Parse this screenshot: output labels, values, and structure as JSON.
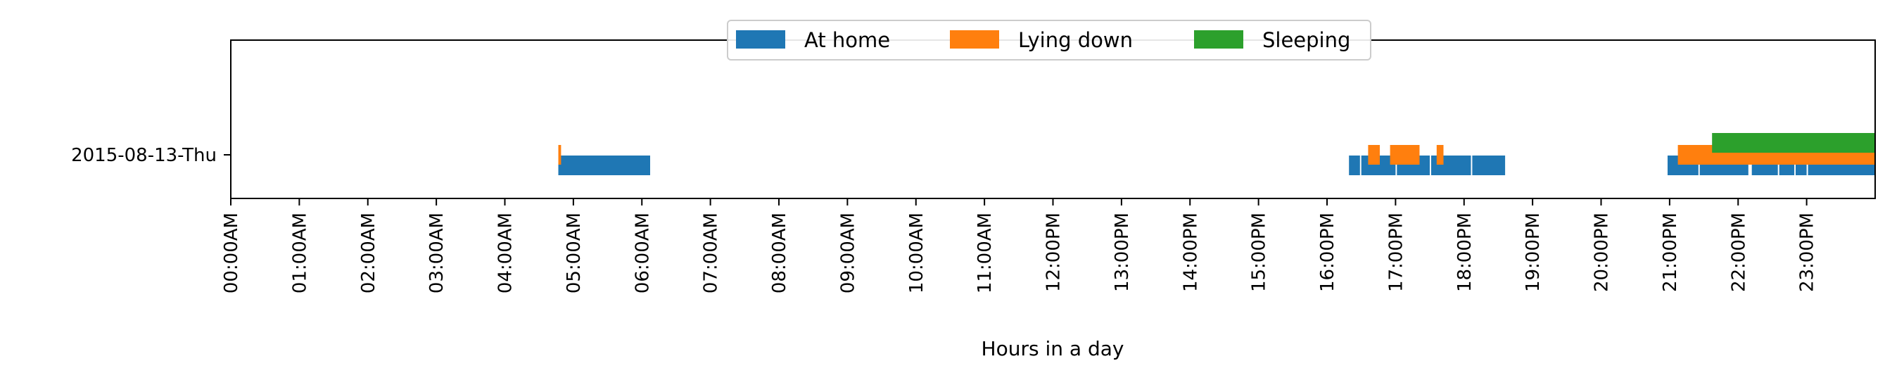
{
  "chart_data": {
    "type": "timeline",
    "xlabel": "Hours in a day",
    "ylabel": "",
    "xlim": [
      0,
      24
    ],
    "x_unit": "hours",
    "grid": false,
    "legend_placement": "upper-center",
    "categories": [
      "2015-08-13-Thu"
    ],
    "x_ticks": [
      "00:00AM",
      "01:00AM",
      "02:00AM",
      "03:00AM",
      "04:00AM",
      "05:00AM",
      "06:00AM",
      "07:00AM",
      "08:00AM",
      "09:00AM",
      "10:00AM",
      "11:00AM",
      "12:00PM",
      "13:00PM",
      "14:00PM",
      "15:00PM",
      "16:00PM",
      "17:00PM",
      "18:00PM",
      "19:00PM",
      "20:00PM",
      "21:00PM",
      "22:00PM",
      "23:00PM"
    ],
    "series": [
      {
        "name": "At home",
        "color": "#1f77b4",
        "intervals": [
          [
            4.78,
            6.12
          ],
          [
            16.32,
            16.48
          ],
          [
            16.5,
            17.0
          ],
          [
            17.02,
            17.5
          ],
          [
            17.52,
            18.1
          ],
          [
            18.12,
            18.6
          ],
          [
            20.97,
            21.42
          ],
          [
            21.44,
            22.15
          ],
          [
            22.2,
            22.58
          ],
          [
            22.6,
            22.82
          ],
          [
            22.84,
            23.0
          ],
          [
            23.02,
            24.0
          ]
        ]
      },
      {
        "name": "Lying down",
        "color": "#ff7f0e",
        "intervals": [
          [
            4.78,
            4.82
          ],
          [
            16.6,
            16.77
          ],
          [
            16.92,
            17.35
          ],
          [
            17.6,
            17.7
          ],
          [
            21.12,
            24.0
          ]
        ]
      },
      {
        "name": "Sleeping",
        "color": "#2ca02c",
        "intervals": [
          [
            21.62,
            24.0
          ]
        ]
      }
    ]
  }
}
